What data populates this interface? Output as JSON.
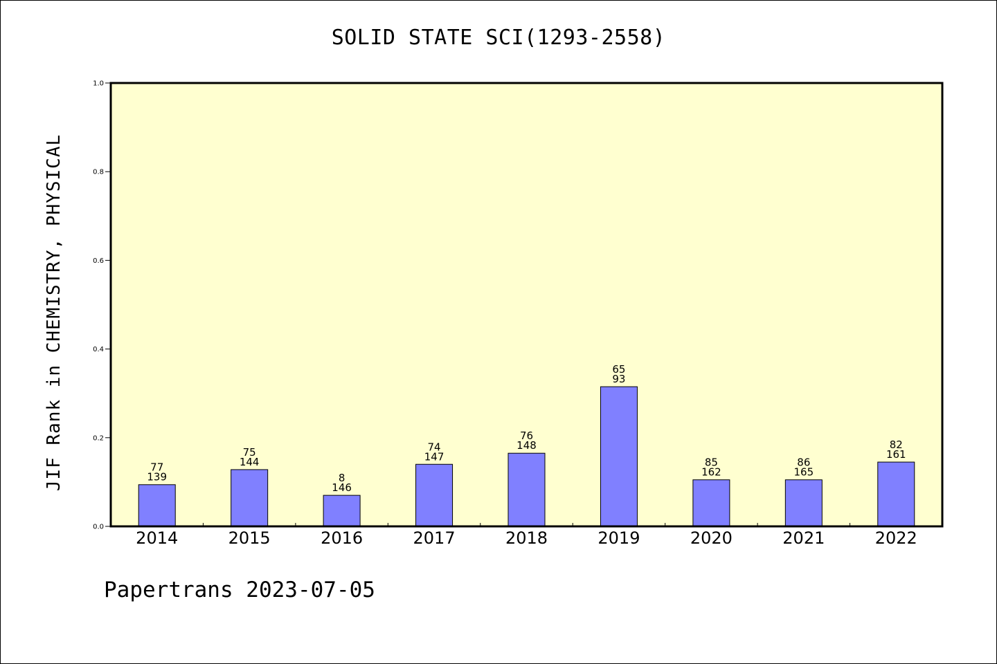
{
  "page": {
    "footer": "Papertrans 2023-07-05"
  },
  "colors": {
    "plot_background": "#ffffd0",
    "bar_fill": "#8080ff",
    "bar_stroke": "#000000",
    "axis": "#000000"
  },
  "chart_data": {
    "type": "bar",
    "title": "SOLID STATE SCI(1293-2558)",
    "xlabel": "",
    "ylabel": "JIF Rank in CHEMISTRY, PHYSICAL",
    "categories": [
      "2014",
      "2015",
      "2016",
      "2017",
      "2018",
      "2019",
      "2020",
      "2021",
      "2022"
    ],
    "values": [
      0.094,
      0.128,
      0.07,
      0.14,
      0.165,
      0.315,
      0.105,
      0.105,
      0.145
    ],
    "data_labels": [
      [
        "77",
        "139"
      ],
      [
        "75",
        "144"
      ],
      [
        "8",
        "146"
      ],
      [
        "74",
        "147"
      ],
      [
        "76",
        "148"
      ],
      [
        "65",
        "93"
      ],
      [
        "85",
        "162"
      ],
      [
        "86",
        "165"
      ],
      [
        "82",
        "161"
      ]
    ],
    "ylim": [
      0.0,
      1.0
    ],
    "yticks": [
      0.0,
      0.2,
      0.4,
      0.6,
      0.8,
      1.0
    ],
    "ytick_labels": [
      "0.0",
      "0.2",
      "0.4",
      "0.6",
      "0.8",
      "1.0"
    ],
    "grid": false,
    "legend": "none"
  }
}
